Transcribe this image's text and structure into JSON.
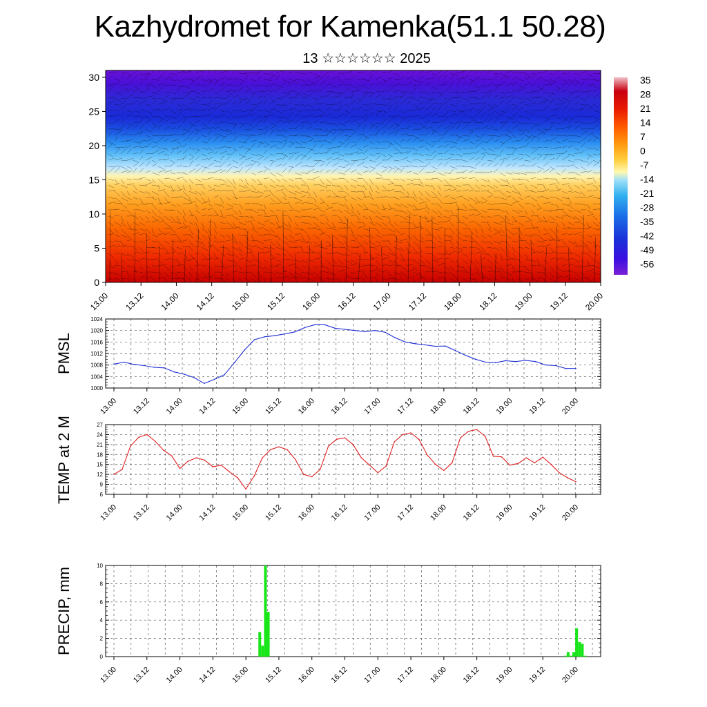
{
  "header": {
    "title": "Kazhydromet for Kamenka(51.1 50.28)",
    "subtitle": "13 ☆☆☆☆☆☆ 2025"
  },
  "colors": {
    "pmsl_line": "#1f2fd6",
    "temp_line": "#e02020",
    "precip_bar": "#19e619",
    "grid": "#555555"
  },
  "chart_data": [
    {
      "type": "heatmap",
      "title": "",
      "ylabel": "",
      "y_ticks": [
        "0",
        "5",
        "10",
        "15",
        "20",
        "25",
        "30"
      ],
      "ylim": [
        0,
        31
      ],
      "x_ticks": [
        "13.00",
        "13.12",
        "14.00",
        "14.12",
        "15.00",
        "15.12",
        "16.00",
        "16.12",
        "17.00",
        "17.12",
        "18.00",
        "18.12",
        "19.00",
        "19.12",
        "20.00"
      ],
      "colorbar_labels": [
        "35",
        "28",
        "21",
        "14",
        "7",
        "0",
        "-7",
        "-14",
        "-21",
        "-28",
        "-35",
        "-42",
        "-49",
        "-56"
      ],
      "overlay": "wind barbs"
    },
    {
      "type": "line",
      "ylabel": "PMSL",
      "ylim": [
        1000,
        1024
      ],
      "y_ticks": [
        "1000",
        "1004",
        "1008",
        "1012",
        "1016",
        "1020",
        "1024"
      ],
      "x_ticks": [
        "13.00",
        "13.12",
        "14.00",
        "14.12",
        "15.00",
        "15.12",
        "16.00",
        "16.12",
        "17.00",
        "17.12",
        "18.00",
        "18.12",
        "19.00",
        "19.12",
        "20.00"
      ],
      "values": [
        1008.3,
        1009.0,
        1008.2,
        1007.8,
        1007.2,
        1007.0,
        1005.6,
        1004.8,
        1003.6,
        1001.6,
        1003.0,
        1004.6,
        1008.8,
        1013.2,
        1016.8,
        1017.8,
        1018.2,
        1018.8,
        1019.5,
        1021.0,
        1022.0,
        1022.0,
        1020.8,
        1020.4,
        1020.0,
        1019.6,
        1020.0,
        1019.4,
        1017.5,
        1016.0,
        1015.4,
        1015.0,
        1014.5,
        1014.6,
        1013.0,
        1011.4,
        1010.0,
        1009.0,
        1008.8,
        1009.5,
        1009.2,
        1009.6,
        1009.2,
        1008.0,
        1007.8,
        1006.8,
        1006.8
      ],
      "grid": true
    },
    {
      "type": "line",
      "ylabel": "TEMP at 2 M",
      "ylim": [
        6,
        27
      ],
      "y_ticks": [
        "6",
        "9",
        "12",
        "15",
        "18",
        "21",
        "24",
        "27"
      ],
      "x_ticks": [
        "13.00",
        "13.12",
        "14.00",
        "14.12",
        "15.00",
        "15.12",
        "16.00",
        "16.12",
        "17.00",
        "17.12",
        "18.00",
        "18.12",
        "19.00",
        "19.12",
        "20.00"
      ],
      "values": [
        12.0,
        13.5,
        20.5,
        23.2,
        24.0,
        22.0,
        19.3,
        17.6,
        13.8,
        16.0,
        17.0,
        16.3,
        14.3,
        14.8,
        12.8,
        11.0,
        7.6,
        11.5,
        17.0,
        19.5,
        20.3,
        19.5,
        16.5,
        12.0,
        11.3,
        13.5,
        20.5,
        22.6,
        23.0,
        21.0,
        17.0,
        14.8,
        12.5,
        14.5,
        21.8,
        24.0,
        24.5,
        22.5,
        17.8,
        15.0,
        13.2,
        15.5,
        23.0,
        25.0,
        25.5,
        23.5,
        17.5,
        17.3,
        14.8,
        15.3,
        17.0,
        15.5,
        17.2,
        15.0,
        12.5,
        11.0,
        9.8
      ],
      "grid": true
    },
    {
      "type": "bar",
      "ylabel": "PRECIP, mm",
      "ylim": [
        0,
        10
      ],
      "y_ticks": [
        "0",
        "2",
        "4",
        "6",
        "8",
        "10"
      ],
      "x_ticks": [
        "13.00",
        "13.12",
        "14.00",
        "14.12",
        "15.00",
        "15.12",
        "16.00",
        "16.12",
        "17.00",
        "17.12",
        "18.00",
        "18.12",
        "19.00",
        "19.12",
        "20.00"
      ],
      "values": [
        0,
        0,
        0,
        0,
        0,
        0,
        0,
        0,
        0,
        0,
        0,
        0,
        0,
        0,
        0,
        0,
        0,
        0,
        0,
        0,
        0,
        0,
        0,
        0,
        0,
        0,
        0,
        0,
        0,
        0,
        0,
        0,
        0,
        0,
        0,
        0,
        0,
        0,
        0,
        0,
        0,
        0,
        0,
        0,
        0,
        0,
        0,
        0,
        0,
        0,
        0,
        0,
        0,
        0,
        2.7,
        1.2,
        10.0,
        4.9,
        0,
        0,
        0,
        0,
        0,
        0,
        0,
        0,
        0,
        0,
        0,
        0,
        0,
        0,
        0,
        0,
        0,
        0,
        0,
        0,
        0,
        0,
        0,
        0,
        0,
        0,
        0,
        0,
        0,
        0,
        0,
        0,
        0,
        0,
        0,
        0,
        0,
        0,
        0,
        0,
        0,
        0,
        0,
        0,
        0,
        0,
        0,
        0,
        0,
        0,
        0,
        0,
        0,
        0,
        0,
        0,
        0,
        0,
        0,
        0,
        0,
        0,
        0,
        0,
        0,
        0,
        0,
        0,
        0,
        0,
        0,
        0,
        0,
        0,
        0,
        0,
        0,
        0,
        0,
        0,
        0,
        0,
        0,
        0,
        0,
        0,
        0,
        0,
        0,
        0,
        0,
        0,
        0,
        0,
        0,
        0,
        0,
        0,
        0,
        0,
        0,
        0,
        0,
        0,
        0.1,
        0.5,
        0.1,
        0.5,
        3.1,
        1.6,
        1.4,
        0.1,
        0,
        0,
        0,
        0,
        0
      ],
      "grid": true
    }
  ]
}
